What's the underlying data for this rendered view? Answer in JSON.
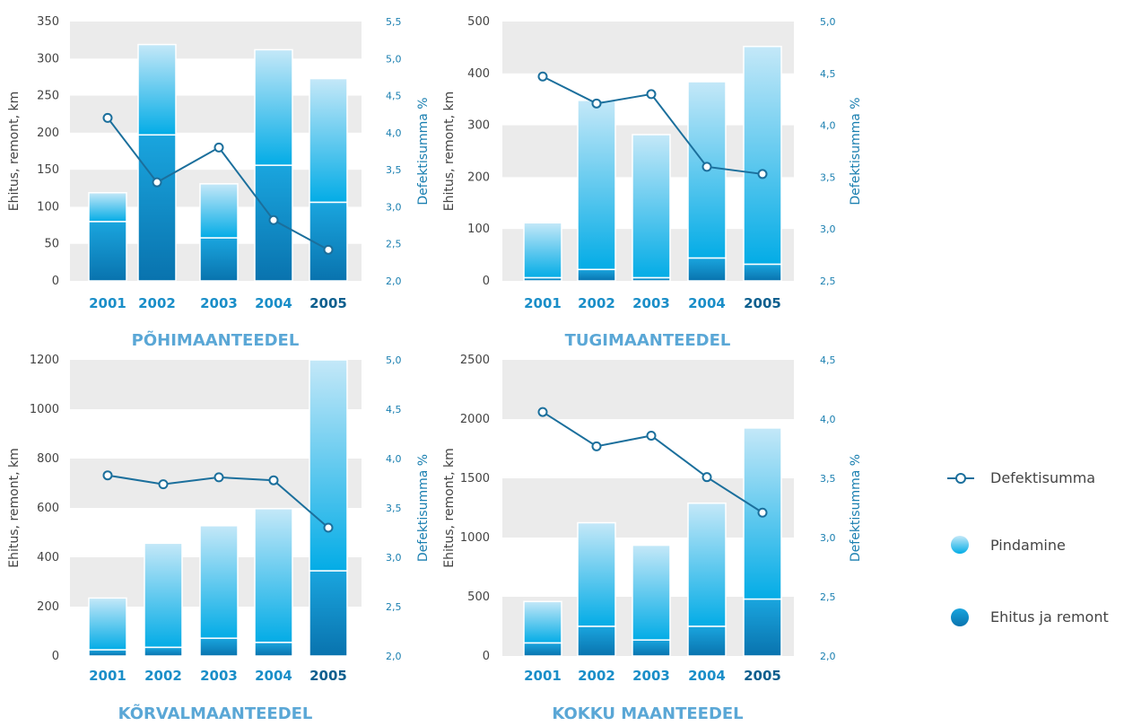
{
  "colors": {
    "band": "#ebebeb",
    "pindamine_light": "#b9e3f6",
    "pindamine_dark": "#06aee6",
    "ehitus_light": "#1aa3dc",
    "ehitus_dark": "#0a74b0",
    "line": "#1b6f9c",
    "title": "#5aa7d6"
  },
  "legend": {
    "defektisumma": "Defektisumma",
    "pindamine": "Pindamine",
    "ehitus": "Ehitus ja remont"
  },
  "chart_data": [
    {
      "type": "bar",
      "title": "PÕHIMAANTEEDEL",
      "categories": [
        "2001",
        "2002",
        "2003",
        "2004",
        "2005"
      ],
      "ylabel": "Ehitus, remont, km",
      "y2label": "Defektisumma %",
      "ylim": [
        0,
        350
      ],
      "yticks": [
        "0",
        "50",
        "100",
        "150",
        "200",
        "250",
        "300",
        "350"
      ],
      "y2lim": [
        2.0,
        5.5
      ],
      "y2ticks": [
        "2,0",
        "2,5",
        "3,0",
        "3,5",
        "4,0",
        "4,5",
        "5,0",
        "5,5"
      ],
      "series": [
        {
          "name": "Ehitus ja remont",
          "values": [
            80,
            197,
            58,
            156,
            106
          ]
        },
        {
          "name": "Pindamine",
          "values": [
            39,
            122,
            73,
            156,
            167
          ]
        },
        {
          "name": "Defektisumma",
          "values": [
            4.2,
            3.33,
            3.8,
            2.82,
            2.42
          ]
        }
      ]
    },
    {
      "type": "bar",
      "title": "TUGIMAANTEEDEL",
      "categories": [
        "2001",
        "2002",
        "2003",
        "2004",
        "2005"
      ],
      "ylabel": "Ehitus, remont, km",
      "y2label": "Defektisumma %",
      "ylim": [
        0,
        500
      ],
      "yticks": [
        "0",
        "100",
        "200",
        "300",
        "400",
        "500"
      ],
      "y2lim": [
        2.5,
        5.0
      ],
      "y2ticks": [
        "2,5",
        "3,0",
        "3,5",
        "4,0",
        "4,5",
        "5,0"
      ],
      "series": [
        {
          "name": "Ehitus ja remont",
          "values": [
            6,
            22,
            6,
            44,
            32
          ]
        },
        {
          "name": "Pindamine",
          "values": [
            106,
            326,
            276,
            340,
            420
          ]
        },
        {
          "name": "Defektisumma",
          "values": [
            4.47,
            4.21,
            4.3,
            3.6,
            3.53
          ]
        }
      ]
    },
    {
      "type": "bar",
      "title": "KÕRVALMAANTEEDEL",
      "categories": [
        "2001",
        "2002",
        "2003",
        "2004",
        "2005"
      ],
      "ylabel": "Ehitus, remont, km",
      "y2label": "Defektisumma %",
      "ylim": [
        0,
        1200
      ],
      "yticks": [
        "0",
        "200",
        "400",
        "600",
        "800",
        "1000",
        "1200"
      ],
      "y2lim": [
        2.0,
        5.0
      ],
      "y2ticks": [
        "2,0",
        "2,5",
        "3,0",
        "3,5",
        "4,0",
        "4,5",
        "5,0"
      ],
      "series": [
        {
          "name": "Ehitus ja remont",
          "values": [
            25,
            35,
            72,
            55,
            345
          ]
        },
        {
          "name": "Pindamine",
          "values": [
            210,
            422,
            456,
            542,
            855
          ]
        },
        {
          "name": "Defektisumma",
          "values": [
            3.83,
            3.74,
            3.81,
            3.78,
            3.3
          ]
        }
      ]
    },
    {
      "type": "bar",
      "title": "KOKKU MAANTEEDEL",
      "categories": [
        "2001",
        "2002",
        "2003",
        "2004",
        "2005"
      ],
      "ylabel": "Ehitus, remont, km",
      "y2label": "Defektisumma %",
      "ylim": [
        0,
        2500
      ],
      "yticks": [
        "0",
        "500",
        "1000",
        "1500",
        "2000",
        "2500"
      ],
      "y2lim": [
        2.0,
        4.5
      ],
      "y2ticks": [
        "2,0",
        "2,5",
        "3,0",
        "3,5",
        "4,0",
        "4,5"
      ],
      "series": [
        {
          "name": "Ehitus ja remont",
          "values": [
            110,
            250,
            135,
            250,
            480
          ]
        },
        {
          "name": "Pindamine",
          "values": [
            350,
            875,
            800,
            1040,
            1445
          ]
        },
        {
          "name": "Defektisumma",
          "values": [
            4.06,
            3.77,
            3.86,
            3.51,
            3.21
          ]
        }
      ]
    }
  ]
}
